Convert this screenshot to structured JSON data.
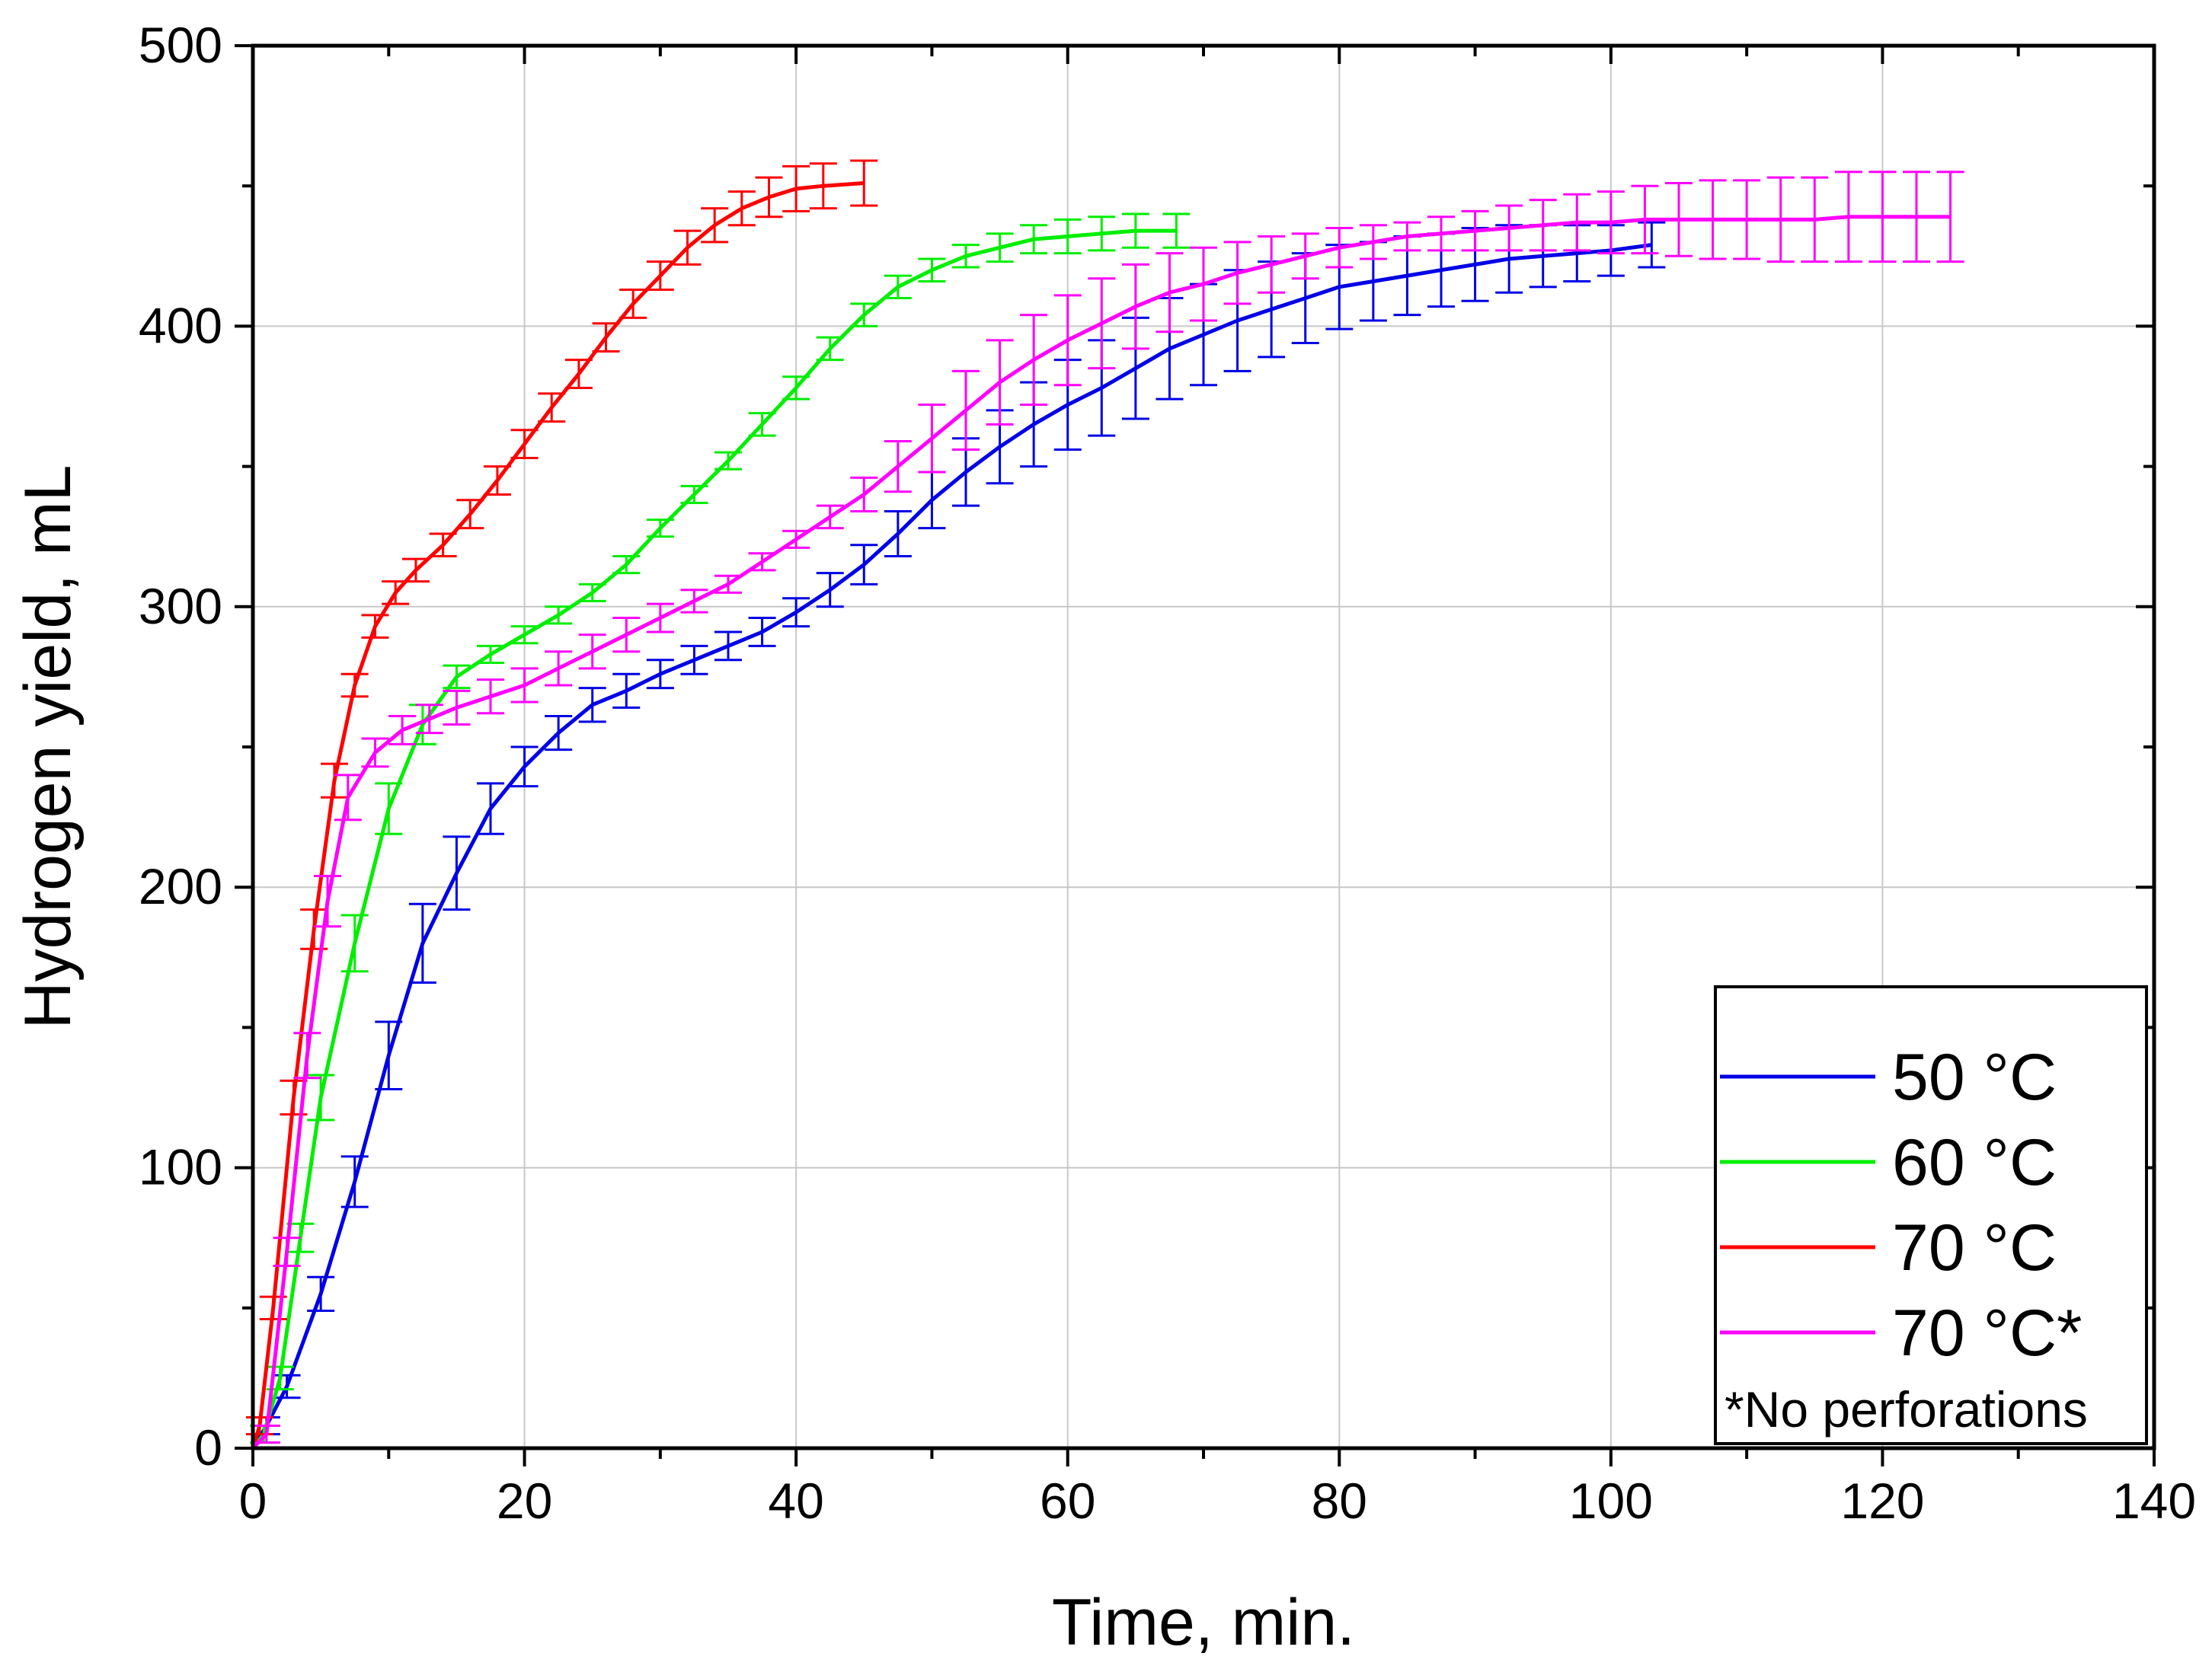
{
  "chart_data": {
    "type": "line",
    "title": "",
    "xlabel": "Time, min.",
    "ylabel": "Hydrogen yield, mL",
    "xlim": [
      0,
      140
    ],
    "ylim": [
      0,
      500
    ],
    "xticks": [
      0,
      20,
      40,
      60,
      80,
      100,
      120,
      140
    ],
    "yticks": [
      0,
      100,
      200,
      300,
      400,
      500
    ],
    "x_tick_labels": [
      "0",
      "20",
      "40",
      "60",
      "80",
      "100",
      "120",
      "140"
    ],
    "y_tick_labels": [
      "0",
      "100",
      "200",
      "300",
      "400",
      "500"
    ],
    "grid": true,
    "legend_position": "bottom-right",
    "legend_note": "*No perforations",
    "error_bars": true,
    "series": [
      {
        "name": "50 °C",
        "color": "#0000e6",
        "x": [
          1,
          2.5,
          5,
          7.5,
          10,
          12.5,
          15,
          17.5,
          20,
          22.5,
          25,
          27.5,
          30,
          32.5,
          35,
          37.5,
          40,
          42.5,
          45,
          47.5,
          50,
          52.5,
          55,
          57.5,
          60,
          62.5,
          65,
          67.5,
          70,
          72.5,
          75,
          77.5,
          80,
          82.5,
          85,
          87.5,
          90,
          92.5,
          95,
          97.5,
          100,
          103
        ],
        "y": [
          8,
          22,
          55,
          95,
          140,
          180,
          205,
          228,
          243,
          255,
          265,
          270,
          276,
          281,
          286,
          291,
          298,
          306,
          315,
          326,
          338,
          348,
          357,
          365,
          372,
          378,
          385,
          392,
          397,
          402,
          406,
          410,
          414,
          416,
          418,
          420,
          422,
          424,
          425,
          426,
          427,
          429
        ],
        "err": [
          3,
          4,
          6,
          9,
          12,
          14,
          13,
          9,
          7,
          6,
          6,
          6,
          5,
          5,
          5,
          5,
          5,
          6,
          7,
          8,
          10,
          12,
          13,
          15,
          16,
          17,
          18,
          18,
          18,
          18,
          17,
          16,
          15,
          14,
          14,
          13,
          13,
          12,
          11,
          10,
          9,
          8
        ]
      },
      {
        "name": "60 °C",
        "color": "#00ee00",
        "x": [
          0.8,
          2,
          3.5,
          5,
          7.5,
          10,
          12.5,
          15,
          17.5,
          20,
          22.5,
          25,
          27.5,
          30,
          32.5,
          35,
          37.5,
          40,
          42.5,
          45,
          47.5,
          50,
          52.5,
          55,
          57.5,
          60,
          62.5,
          65,
          68
        ],
        "y": [
          5,
          25,
          75,
          125,
          180,
          228,
          258,
          275,
          283,
          290,
          297,
          305,
          315,
          328,
          340,
          352,
          365,
          378,
          392,
          404,
          414,
          420,
          425,
          428,
          431,
          432,
          433,
          434,
          434
        ],
        "err": [
          3,
          4,
          5,
          8,
          10,
          9,
          7,
          4,
          3,
          3,
          3,
          3,
          3,
          3,
          3,
          3,
          4,
          4,
          4,
          4,
          4,
          4,
          4,
          5,
          5,
          6,
          6,
          6,
          6
        ]
      },
      {
        "name": "70 °C",
        "color": "#ff0000",
        "x": [
          0.5,
          1.5,
          3,
          4.5,
          6,
          7.5,
          9,
          10.5,
          12,
          14,
          16,
          18,
          20,
          22,
          24,
          26,
          28,
          30,
          32,
          34,
          36,
          38,
          40,
          42,
          45
        ],
        "y": [
          8,
          50,
          125,
          185,
          238,
          272,
          293,
          305,
          313,
          322,
          333,
          345,
          358,
          371,
          383,
          396,
          408,
          418,
          428,
          436,
          442,
          446,
          449,
          450,
          451
        ],
        "err": [
          3,
          4,
          6,
          7,
          6,
          4,
          4,
          4,
          4,
          4,
          5,
          5,
          5,
          5,
          5,
          5,
          5,
          5,
          6,
          6,
          6,
          7,
          8,
          8,
          8
        ]
      },
      {
        "name": "70 °C*",
        "color": "#ff00ff",
        "x": [
          1,
          2.5,
          4,
          5.5,
          7,
          9,
          11,
          13,
          15,
          17.5,
          20,
          22.5,
          25,
          27.5,
          30,
          32.5,
          35,
          37.5,
          40,
          42.5,
          45,
          47.5,
          50,
          52.5,
          55,
          57.5,
          60,
          62.5,
          65,
          67.5,
          70,
          72.5,
          75,
          77.5,
          80,
          82.5,
          85,
          87.5,
          90,
          92.5,
          95,
          97.5,
          100,
          102.5,
          105,
          107.5,
          110,
          112.5,
          115,
          117.5,
          120,
          122.5,
          125
        ],
        "y": [
          5,
          70,
          140,
          195,
          232,
          248,
          256,
          260,
          264,
          268,
          272,
          278,
          284,
          290,
          296,
          302,
          308,
          316,
          324,
          332,
          340,
          350,
          360,
          370,
          380,
          388,
          395,
          401,
          407,
          412,
          415,
          419,
          422,
          425,
          428,
          430,
          432,
          433,
          434,
          435,
          436,
          437,
          437,
          438,
          438,
          438,
          438,
          438,
          438,
          439,
          439,
          439,
          439
        ],
        "err": [
          3,
          5,
          8,
          9,
          8,
          5,
          5,
          5,
          6,
          6,
          6,
          6,
          6,
          6,
          5,
          4,
          3,
          3,
          3,
          4,
          6,
          9,
          12,
          14,
          15,
          16,
          16,
          16,
          15,
          14,
          13,
          11,
          10,
          8,
          7,
          6,
          5,
          6,
          7,
          8,
          9,
          10,
          11,
          12,
          13,
          14,
          14,
          15,
          15,
          16,
          16,
          16,
          16
        ]
      }
    ]
  }
}
